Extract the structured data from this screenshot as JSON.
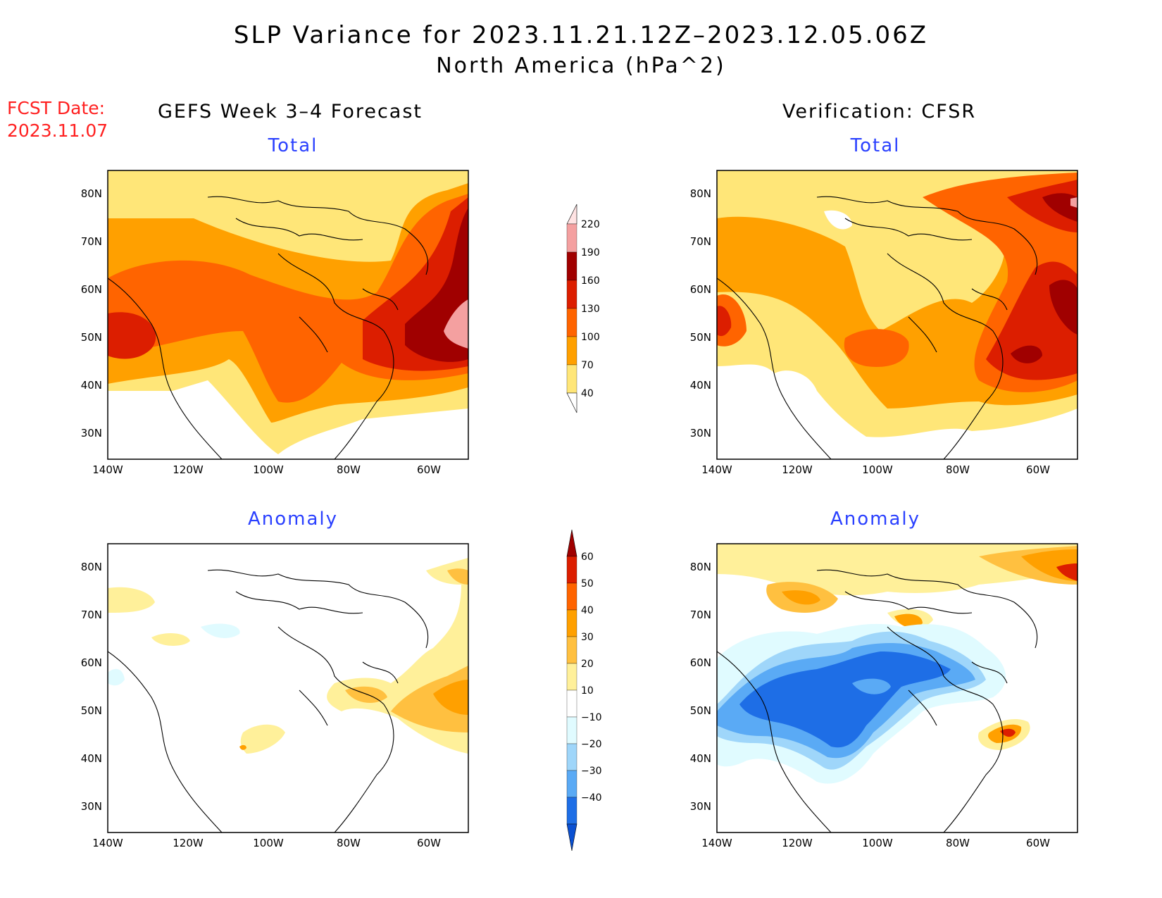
{
  "title": {
    "line1": "SLP Variance for 2023.11.21.12Z–2023.12.05.06Z",
    "line2": "North America (hPa^2)"
  },
  "forecast_date": {
    "label": "FCST Date:",
    "value": "2023.11.07"
  },
  "columns": [
    {
      "heading": "GEFS Week 3–4 Forecast"
    },
    {
      "heading": "Verification: CFSR"
    }
  ],
  "rows": [
    {
      "subtitle": "Total"
    },
    {
      "subtitle": "Anomaly"
    }
  ],
  "axes": {
    "lon_ticks": [
      "140W",
      "120W",
      "100W",
      "80W",
      "60W"
    ],
    "lat_ticks": [
      "80N",
      "70N",
      "60N",
      "50N",
      "40N",
      "30N"
    ]
  },
  "colorbars": {
    "total": {
      "levels": [
        "220",
        "190",
        "160",
        "130",
        "100",
        "70",
        "40"
      ],
      "colors": [
        "#ffe3e3",
        "#f4a0a0",
        "#a00000",
        "#dc1e00",
        "#ff6400",
        "#ffa000",
        "#ffe678"
      ]
    },
    "anomaly": {
      "levels": [
        "60",
        "50",
        "40",
        "30",
        "20",
        "10",
        "−10",
        "−20",
        "−30",
        "−40"
      ],
      "colors": [
        "#a00000",
        "#dc1e00",
        "#ff6400",
        "#ffa000",
        "#ffc040",
        "#fff09a",
        "#ffffff",
        "#e0fbff",
        "#9fd6fa",
        "#5aaaf5",
        "#1e6ee6",
        "#0a50d2"
      ]
    }
  },
  "chart_data": [
    {
      "type": "heatmap",
      "panel": "GEFS Week 3–4 Forecast – Total",
      "units": "hPa^2",
      "xlim": [
        "140W",
        "50W"
      ],
      "ylim": [
        "25N",
        "85N"
      ],
      "summary": {
        "min_region": "southwest US (<40)",
        "max_region": "Gulf of St. Lawrence / Labrador (190–220)",
        "range": [
          40,
          220
        ]
      }
    },
    {
      "type": "heatmap",
      "panel": "Verification: CFSR – Total",
      "units": "hPa^2",
      "xlim": [
        "140W",
        "50W"
      ],
      "ylim": [
        "25N",
        "85N"
      ],
      "summary": {
        "min_region": "western US interior (<40)",
        "max_region": "Labrador Sea / Greenland (160–220)",
        "range": [
          40,
          220
        ]
      }
    },
    {
      "type": "heatmap",
      "panel": "GEFS Week 3–4 Forecast – Anomaly",
      "units": "hPa^2",
      "xlim": [
        "140W",
        "50W"
      ],
      "ylim": [
        "25N",
        "85N"
      ],
      "summary": {
        "min_region": "mostly near zero (−10 to 10)",
        "max_region": "Atlantic Canada (30–40)",
        "range": [
          -20,
          40
        ]
      }
    },
    {
      "type": "heatmap",
      "panel": "Verification: CFSR – Anomaly",
      "units": "hPa^2",
      "xlim": [
        "140W",
        "50W"
      ],
      "ylim": [
        "25N",
        "85N"
      ],
      "summary": {
        "min_region": "central/western North America (−40 and below)",
        "max_region": "off US East Coast / Greenland (40–60)",
        "range": [
          -50,
          60
        ]
      }
    }
  ]
}
